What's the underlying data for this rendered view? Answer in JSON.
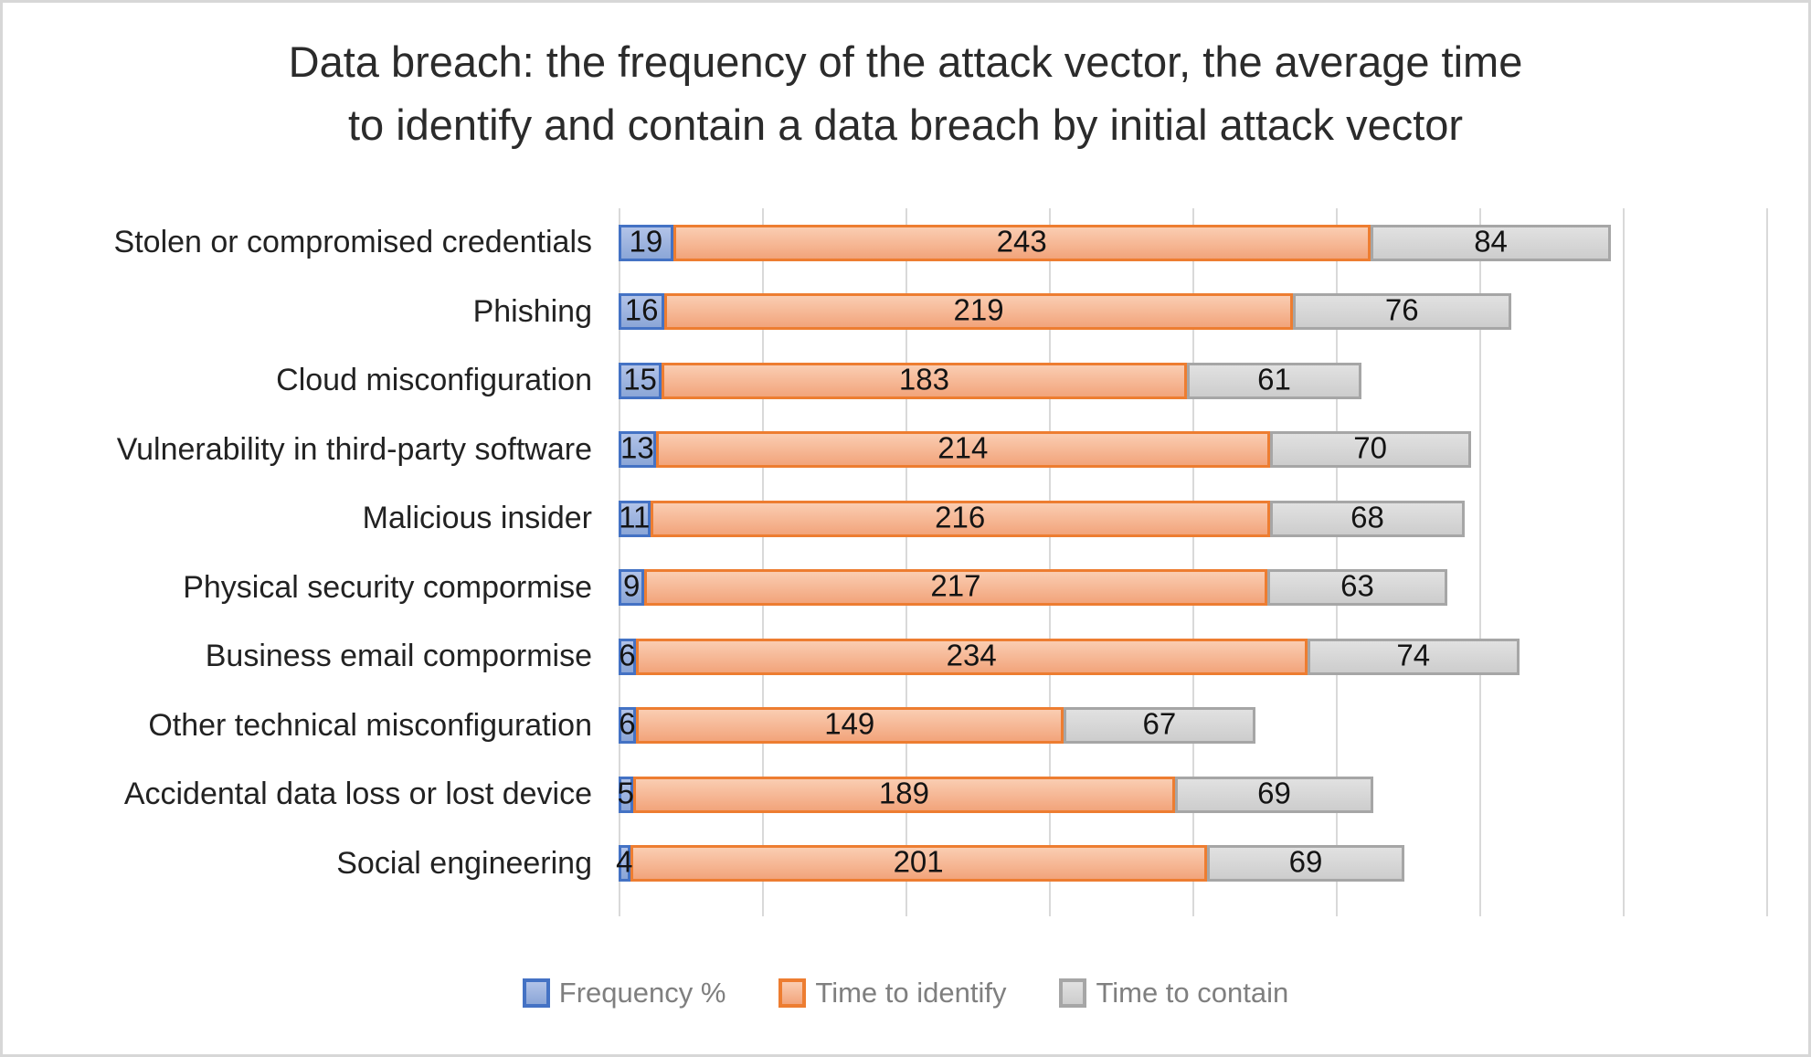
{
  "title": {
    "line1": "Data breach: the frequency of the attack vector, the average time",
    "line2": "to identify and contain a data breach by initial attack vector"
  },
  "legend": {
    "items": [
      "Frequency %",
      "Time to identify",
      "Time to contain"
    ]
  },
  "colors": {
    "grid": "#d9d9d9",
    "frame_border": "#d7d7d7",
    "title_text": "#2b2b2b",
    "category_text": "#222222",
    "bar_label_text": "#141414",
    "legend_text": "#7f7f7f"
  },
  "chart_data": {
    "type": "bar",
    "orientation": "horizontal",
    "stacked": true,
    "title": "Data breach: the frequency of the attack vector, the average time to identify and contain a data breach by initial attack vector",
    "categories": [
      "Stolen or compromised credentials",
      "Phishing",
      "Cloud misconfiguration",
      "Vulnerability in third-party software",
      "Malicious insider",
      "Physical security compormise",
      "Business email compormise",
      "Other technical misconfiguration",
      "Accidental data loss or lost device",
      "Social engineering"
    ],
    "series": [
      {
        "name": "Frequency %",
        "values": [
          19,
          16,
          15,
          13,
          11,
          9,
          6,
          6,
          5,
          4
        ],
        "fill_top": "#b2c3e8",
        "fill_bottom": "#8ba6d7",
        "border": "#4472c4"
      },
      {
        "name": "Time to identify",
        "values": [
          243,
          219,
          183,
          214,
          216,
          217,
          234,
          149,
          189,
          201
        ],
        "fill_top": "#facdb2",
        "fill_bottom": "#f2a47b",
        "border": "#ed7d31"
      },
      {
        "name": "Time to contain",
        "values": [
          84,
          76,
          61,
          70,
          68,
          63,
          74,
          67,
          69,
          69
        ],
        "fill_top": "#e1e1e1",
        "fill_bottom": "#cdcdcd",
        "border": "#a6a6a6"
      }
    ],
    "xlabel": "",
    "ylabel": "",
    "xlim": [
      0,
      400
    ],
    "gridline_interval": 50,
    "x_tick_labels_visible": false,
    "grid": true,
    "data_labels": true,
    "legend_position": "bottom"
  }
}
